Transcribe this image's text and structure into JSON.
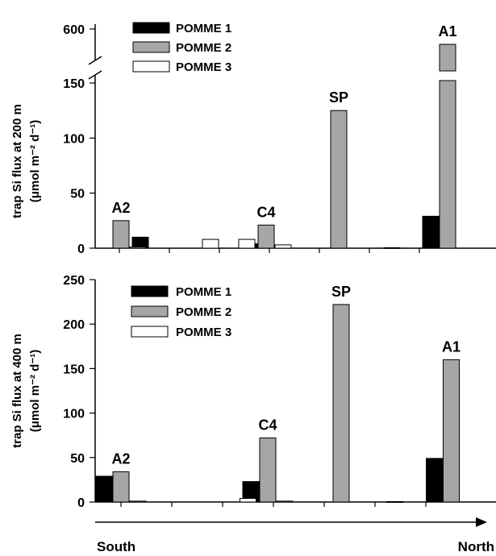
{
  "chart_data": [
    {
      "type": "bar",
      "panel": "top",
      "ylabel_line1": "trap Si flux at 200 m",
      "ylabel_line2": "(μmol m⁻² d⁻¹)",
      "axis_break": true,
      "ylim_lower": [
        0,
        150
      ],
      "ylim_upper": [
        550,
        600
      ],
      "yticks": [
        "0",
        "50",
        "100",
        "150",
        "600"
      ],
      "grid": false,
      "legend_position": "top-left",
      "series": [
        {
          "name": "POMME 1",
          "color": "#000000",
          "values": [
            0,
            10,
            0,
            0,
            4,
            0,
            0,
            0,
            0,
            29
          ]
        },
        {
          "name": "POMME 2",
          "color": "#a6a6a6",
          "values": [
            25,
            0,
            0,
            0,
            21,
            0,
            125,
            0,
            0,
            575
          ]
        },
        {
          "name": "POMME 3",
          "color": "#ffffff",
          "values": [
            1,
            0,
            8,
            8,
            3,
            0,
            0,
            0.5,
            0,
            0
          ]
        }
      ],
      "site_labels": [
        {
          "text": "A2",
          "slot": 0
        },
        {
          "text": "C4",
          "slot": 4
        },
        {
          "text": "SP",
          "slot": 6
        },
        {
          "text": "A1",
          "slot": 9
        }
      ]
    },
    {
      "type": "bar",
      "panel": "bottom",
      "ylabel_line1": "trap Si flux at 400 m",
      "ylabel_line2": "(μmol m⁻² d⁻¹)",
      "ylim": [
        0,
        250
      ],
      "yticks": [
        "0",
        "50",
        "100",
        "150",
        "200",
        "250"
      ],
      "grid": false,
      "legend_position": "top-left",
      "series": [
        {
          "name": "POMME 1",
          "color": "#000000",
          "values": [
            29,
            0,
            0,
            0,
            23,
            0,
            0,
            0,
            0,
            49
          ]
        },
        {
          "name": "POMME 2",
          "color": "#a6a6a6",
          "values": [
            34,
            0,
            0,
            0,
            72,
            0,
            222,
            0,
            0,
            160
          ]
        },
        {
          "name": "POMME 3",
          "color": "#ffffff",
          "values": [
            1,
            0,
            0,
            4,
            1,
            0,
            0,
            0.5,
            0,
            0
          ]
        }
      ],
      "site_labels": [
        {
          "text": "A2",
          "slot": 0
        },
        {
          "text": "C4",
          "slot": 4
        },
        {
          "text": "SP",
          "slot": 6
        },
        {
          "text": "A1",
          "slot": 9
        }
      ]
    }
  ],
  "direction": {
    "left_label": "South",
    "right_label": "North"
  }
}
